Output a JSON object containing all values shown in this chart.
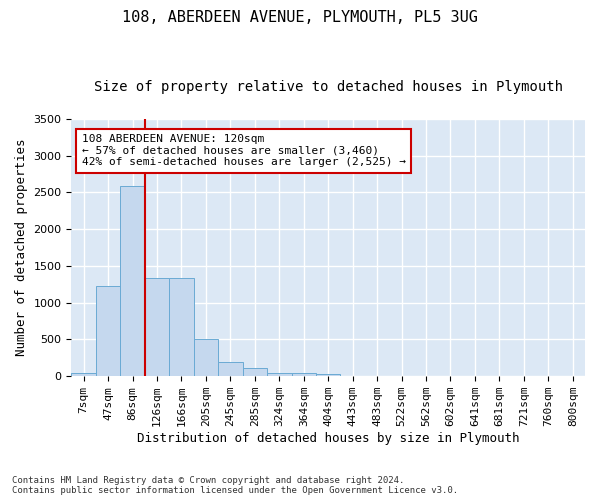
{
  "title": "108, ABERDEEN AVENUE, PLYMOUTH, PL5 3UG",
  "subtitle": "Size of property relative to detached houses in Plymouth",
  "xlabel": "Distribution of detached houses by size in Plymouth",
  "ylabel": "Number of detached properties",
  "bar_values": [
    50,
    1220,
    2580,
    1340,
    1340,
    500,
    190,
    105,
    50,
    50,
    30,
    0,
    0,
    0,
    0,
    0,
    0,
    0,
    0,
    0,
    0
  ],
  "bar_labels": [
    "7sqm",
    "47sqm",
    "86sqm",
    "126sqm",
    "166sqm",
    "205sqm",
    "245sqm",
    "285sqm",
    "324sqm",
    "364sqm",
    "404sqm",
    "443sqm",
    "483sqm",
    "522sqm",
    "562sqm",
    "602sqm",
    "641sqm",
    "681sqm",
    "721sqm",
    "760sqm",
    "800sqm"
  ],
  "bar_color": "#c5d8ee",
  "bar_edge_color": "#6aaad4",
  "vline_x": 2.5,
  "vline_color": "#cc0000",
  "ylim": [
    0,
    3500
  ],
  "yticks": [
    0,
    500,
    1000,
    1500,
    2000,
    2500,
    3000,
    3500
  ],
  "annotation_title": "108 ABERDEEN AVENUE: 120sqm",
  "annotation_line1": "← 57% of detached houses are smaller (3,460)",
  "annotation_line2": "42% of semi-detached houses are larger (2,525) →",
  "annotation_box_color": "#cc0000",
  "background_color": "#dce8f5",
  "grid_color": "#ffffff",
  "footer_line1": "Contains HM Land Registry data © Crown copyright and database right 2024.",
  "footer_line2": "Contains public sector information licensed under the Open Government Licence v3.0.",
  "title_fontsize": 11,
  "subtitle_fontsize": 10,
  "xlabel_fontsize": 9,
  "ylabel_fontsize": 9,
  "tick_fontsize": 8,
  "footer_fontsize": 6.5,
  "annot_fontsize": 8
}
